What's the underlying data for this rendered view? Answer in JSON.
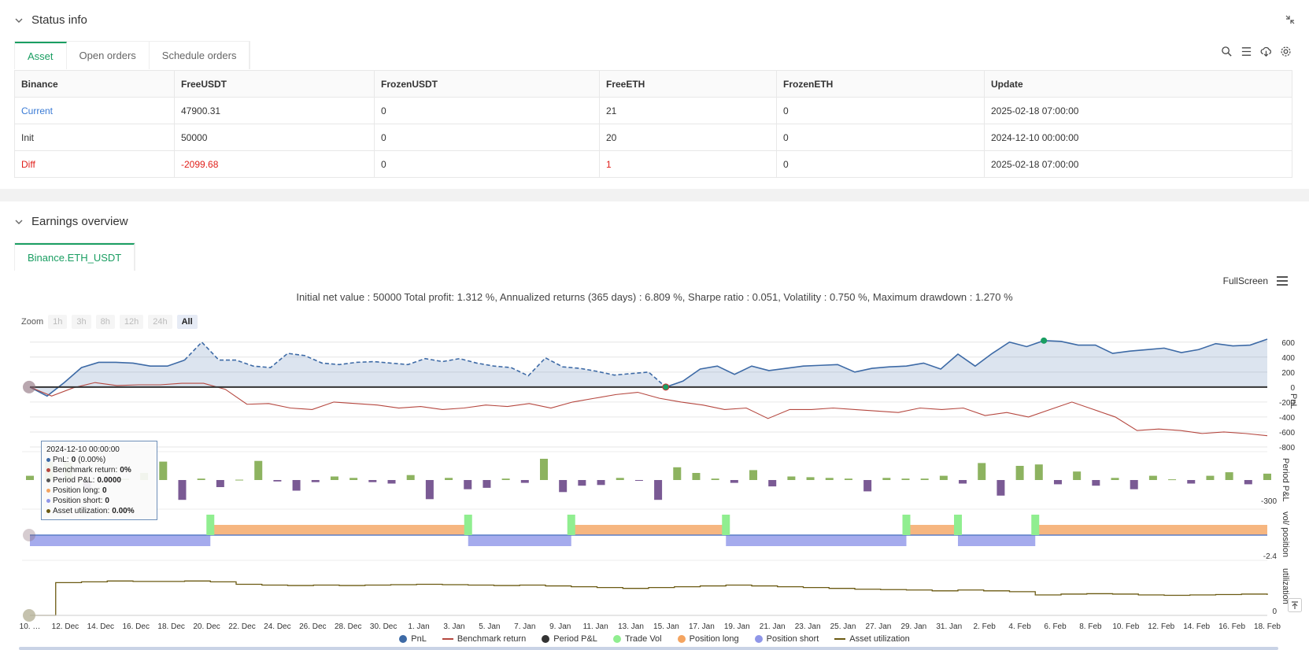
{
  "status": {
    "title": "Status info",
    "tabs": [
      "Asset",
      "Open orders",
      "Schedule orders"
    ],
    "table": {
      "headers": [
        "Binance",
        "FreeUSDT",
        "FrozenUSDT",
        "FreeETH",
        "FrozenETH",
        "Update"
      ],
      "rows": [
        [
          "Current",
          "47900.31",
          "0",
          "21",
          "0",
          "2025-02-18 07:00:00"
        ],
        [
          "Init",
          "50000",
          "0",
          "20",
          "0",
          "2024-12-10 00:00:00"
        ],
        [
          "Diff",
          "-2099.68",
          "0",
          "1",
          "0",
          "2025-02-18 07:00:00"
        ]
      ]
    }
  },
  "earnings": {
    "title": "Earnings overview",
    "tab": "Binance.ETH_USDT",
    "summary": "Initial net value : 50000 Total profit: 1.312 %, Annualized returns (365 days) : 6.809 %, Sharpe ratio : 0.051, Volatility : 0.750 %, Maximum drawdown : 1.270 %",
    "zoom_label": "Zoom",
    "zoom_buttons": [
      "1h",
      "3h",
      "8h",
      "12h",
      "24h",
      "All"
    ],
    "fullscreen": "FullScreen"
  },
  "tooltip": {
    "date": "2024-12-10 00:00:00",
    "pnl_label": "PnL: ",
    "pnl_value": "0",
    "pnl_pct": " (0.00%)",
    "bench_label": "Benchmark return: ",
    "bench_value": "0%",
    "period_label": "Period P&L: ",
    "period_value": "0.0000",
    "long_label": "Position long: ",
    "long_value": "0",
    "short_label": "Position short: ",
    "short_value": "0",
    "util_label": "Asset utilization: ",
    "util_value": "0.00%"
  },
  "legend": [
    "PnL",
    "Benchmark return",
    "Period P&L",
    "Trade Vol",
    "Position long",
    "Position short",
    "Asset utilization"
  ],
  "colors": {
    "pnl": "#3d6aa6",
    "bench": "#b5473f",
    "period_pos": "#8db360",
    "period_neg": "#7a5a94",
    "trade": "#90ee90",
    "long": "#f4a460",
    "short": "#8f96e8",
    "util": "#6b5a12",
    "accent": "#1a9e62"
  },
  "chart_data": {
    "type": "line",
    "x_ticks": [
      "10. …",
      "12. Dec",
      "14. Dec",
      "16. Dec",
      "18. Dec",
      "20. Dec",
      "22. Dec",
      "24. Dec",
      "26. Dec",
      "28. Dec",
      "30. Dec",
      "1. Jan",
      "3. Jan",
      "5. Jan",
      "7. Jan",
      "9. Jan",
      "11. Jan",
      "13. Jan",
      "15. Jan",
      "17. Jan",
      "19. Jan",
      "21. Jan",
      "23. Jan",
      "25. Jan",
      "27. Jan",
      "29. Jan",
      "31. Jan",
      "2. Feb",
      "4. Feb",
      "6. Feb",
      "8. Feb",
      "10. Feb",
      "12. Feb",
      "14. Feb",
      "16. Feb",
      "18. Feb"
    ],
    "pnl": {
      "axis_label": "PnL",
      "y_ticks": [
        "600",
        "400",
        "200",
        "0",
        "-200",
        "-400",
        "-600",
        "-800"
      ],
      "ylim": [
        -800,
        650
      ],
      "series": [
        {
          "name": "PnL",
          "values": [
            0,
            -120,
            60,
            260,
            330,
            330,
            320,
            280,
            280,
            360,
            600,
            360,
            360,
            280,
            260,
            450,
            420,
            320,
            300,
            330,
            340,
            320,
            300,
            380,
            340,
            380,
            320,
            280,
            260,
            150,
            390,
            270,
            250,
            210,
            160,
            180,
            200,
            0,
            80,
            240,
            280,
            170,
            280,
            220,
            250,
            280,
            290,
            300,
            200,
            250,
            270,
            280,
            320,
            240,
            440,
            280,
            450,
            600,
            540,
            620,
            610,
            560,
            560,
            450,
            480,
            500,
            520,
            460,
            500,
            580,
            550,
            560,
            640
          ]
        },
        {
          "name": "Benchmark return",
          "values": [
            0,
            -120,
            -10,
            60,
            20,
            30,
            30,
            50,
            50,
            -30,
            -230,
            -220,
            -280,
            -300,
            -200,
            -220,
            -240,
            -280,
            -260,
            -300,
            -280,
            -240,
            -260,
            -220,
            -280,
            -200,
            -150,
            -100,
            -70,
            -150,
            -200,
            -240,
            -300,
            -280,
            -420,
            -300,
            -300,
            -280,
            -300,
            -320,
            -340,
            -280,
            -300,
            -280,
            -380,
            -340,
            -400,
            -300,
            -200,
            -300,
            -400,
            -580,
            -560,
            -580,
            -620,
            -600,
            -620,
            -650
          ]
        }
      ]
    },
    "period": {
      "axis_label": "Period P&L",
      "y_ticks": [
        "-300"
      ],
      "values": [
        60,
        260,
        250,
        -130,
        -20,
        20,
        100,
        260,
        -280,
        20,
        -100,
        5,
        270,
        -20,
        -150,
        -30,
        50,
        30,
        -30,
        -50,
        70,
        -270,
        30,
        -130,
        -110,
        20,
        -40,
        300,
        -170,
        -80,
        -70,
        30,
        -10,
        -280,
        180,
        100,
        20,
        -40,
        140,
        -90,
        50,
        40,
        30,
        20,
        -160,
        30,
        20,
        20,
        60,
        -50,
        240,
        -220,
        200,
        220,
        -60,
        120,
        -80,
        30,
        -130,
        60,
        10,
        -50,
        60,
        110,
        -60,
        90
      ]
    },
    "position": {
      "axis_label": "vol/ position",
      "y_ticks": [
        "-2.4"
      ],
      "trade_marks": [
        7,
        17,
        21,
        27,
        34,
        36,
        39
      ],
      "long_ranges": [
        [
          7,
          17
        ],
        [
          21,
          27
        ],
        [
          34,
          36
        ],
        [
          39,
          48
        ]
      ],
      "short_ranges": [
        [
          0,
          7
        ],
        [
          17,
          21
        ],
        [
          27,
          34
        ],
        [
          36,
          39
        ]
      ]
    },
    "utilization": {
      "axis_label": "utilization",
      "y_ticks": [
        "0"
      ],
      "values": [
        0,
        0.8,
        0.82,
        0.84,
        0.83,
        0.83,
        0.84,
        0.82,
        0.76,
        0.74,
        0.73,
        0.74,
        0.73,
        0.74,
        0.75,
        0.76,
        0.75,
        0.74,
        0.73,
        0.74,
        0.72,
        0.7,
        0.68,
        0.66,
        0.68,
        0.7,
        0.72,
        0.74,
        0.72,
        0.7,
        0.68,
        0.66,
        0.64,
        0.63,
        0.62,
        0.6,
        0.62,
        0.6,
        0.58,
        0.5,
        0.52,
        0.53,
        0.52,
        0.5,
        0.49,
        0.5,
        0.51,
        0.52,
        0.5
      ]
    }
  }
}
